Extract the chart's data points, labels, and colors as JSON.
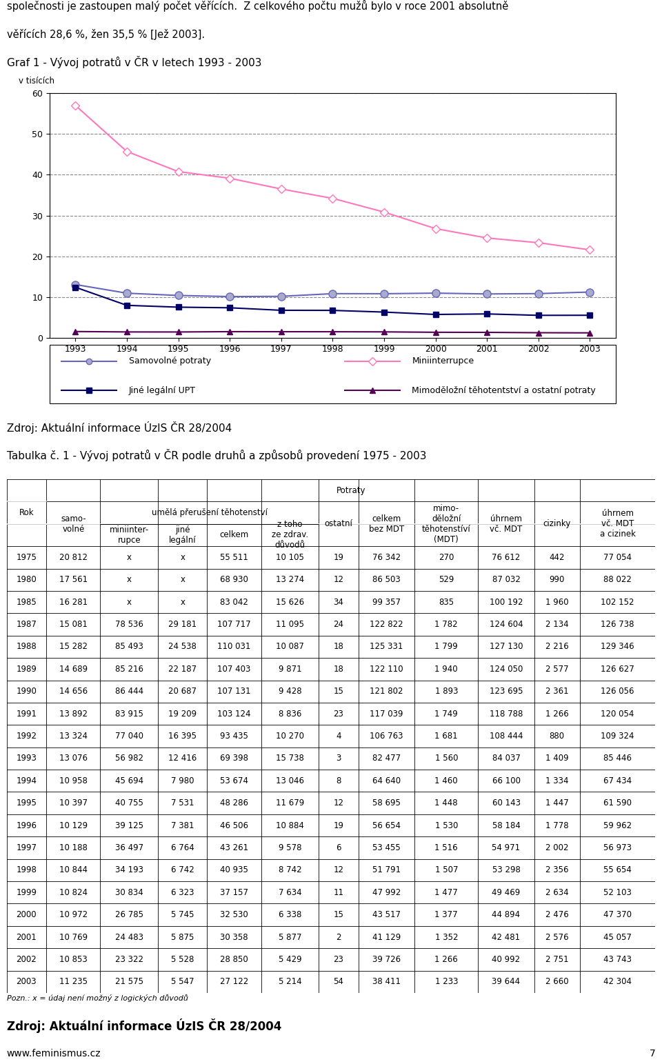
{
  "intro_text_line1": "společnosti je zastoupen malý počet věřících.  Z celkového počtu mužů bylo v roce 2001 absolutně",
  "intro_text_line2": "věřících 28,6 %, žen 35,5 % [Jež 2003].",
  "chart_title": "Graf 1 - Vývoj potratů v ČR v letech 1993 - 2003",
  "y_label": "v tisících",
  "years": [
    1993,
    1994,
    1995,
    1996,
    1997,
    1998,
    1999,
    2000,
    2001,
    2002,
    2003
  ],
  "samovolne": [
    13.076,
    10.958,
    10.397,
    10.129,
    10.188,
    10.844,
    10.824,
    10.972,
    10.769,
    10.853,
    11.235
  ],
  "miniinterrupce": [
    56.982,
    45.694,
    40.755,
    39.125,
    36.497,
    34.193,
    30.834,
    26.785,
    24.483,
    23.322,
    21.575
  ],
  "jine_legalni": [
    12.416,
    7.98,
    7.531,
    7.381,
    6.764,
    6.742,
    6.323,
    5.745,
    5.875,
    5.528,
    5.547
  ],
  "mimodelo": [
    1.56,
    1.46,
    1.448,
    1.53,
    1.516,
    1.507,
    1.477,
    1.377,
    1.352,
    1.266,
    1.233
  ],
  "source_text": "Zdroj: Aktuální informace ÚzIS ČR 28/2004",
  "table_title": "Tabulka č. 1 - Vývoj potratů v ČR podle druhů a způsobů provedení 1975 - 2003",
  "table_rows": [
    [
      "1975",
      "20 812",
      "x",
      "x",
      "55 511",
      "10 105",
      "19",
      "76 342",
      "270",
      "76 612",
      "442",
      "77 054"
    ],
    [
      "1980",
      "17 561",
      "x",
      "x",
      "68 930",
      "13 274",
      "12",
      "86 503",
      "529",
      "87 032",
      "990",
      "88 022"
    ],
    [
      "1985",
      "16 281",
      "x",
      "x",
      "83 042",
      "15 626",
      "34",
      "99 357",
      "835",
      "100 192",
      "1 960",
      "102 152"
    ],
    [
      "1987",
      "15 081",
      "78 536",
      "29 181",
      "107 717",
      "11 095",
      "24",
      "122 822",
      "1 782",
      "124 604",
      "2 134",
      "126 738"
    ],
    [
      "1988",
      "15 282",
      "85 493",
      "24 538",
      "110 031",
      "10 087",
      "18",
      "125 331",
      "1 799",
      "127 130",
      "2 216",
      "129 346"
    ],
    [
      "1989",
      "14 689",
      "85 216",
      "22 187",
      "107 403",
      "9 871",
      "18",
      "122 110",
      "1 940",
      "124 050",
      "2 577",
      "126 627"
    ],
    [
      "1990",
      "14 656",
      "86 444",
      "20 687",
      "107 131",
      "9 428",
      "15",
      "121 802",
      "1 893",
      "123 695",
      "2 361",
      "126 056"
    ],
    [
      "1991",
      "13 892",
      "83 915",
      "19 209",
      "103 124",
      "8 836",
      "23",
      "117 039",
      "1 749",
      "118 788",
      "1 266",
      "120 054"
    ],
    [
      "1992",
      "13 324",
      "77 040",
      "16 395",
      "93 435",
      "10 270",
      "4",
      "106 763",
      "1 681",
      "108 444",
      "880",
      "109 324"
    ],
    [
      "1993",
      "13 076",
      "56 982",
      "12 416",
      "69 398",
      "15 738",
      "3",
      "82 477",
      "1 560",
      "84 037",
      "1 409",
      "85 446"
    ],
    [
      "1994",
      "10 958",
      "45 694",
      "7 980",
      "53 674",
      "13 046",
      "8",
      "64 640",
      "1 460",
      "66 100",
      "1 334",
      "67 434"
    ],
    [
      "1995",
      "10 397",
      "40 755",
      "7 531",
      "48 286",
      "11 679",
      "12",
      "58 695",
      "1 448",
      "60 143",
      "1 447",
      "61 590"
    ],
    [
      "1996",
      "10 129",
      "39 125",
      "7 381",
      "46 506",
      "10 884",
      "19",
      "56 654",
      "1 530",
      "58 184",
      "1 778",
      "59 962"
    ],
    [
      "1997",
      "10 188",
      "36 497",
      "6 764",
      "43 261",
      "9 578",
      "6",
      "53 455",
      "1 516",
      "54 971",
      "2 002",
      "56 973"
    ],
    [
      "1998",
      "10 844",
      "34 193",
      "6 742",
      "40 935",
      "8 742",
      "12",
      "51 791",
      "1 507",
      "53 298",
      "2 356",
      "55 654"
    ],
    [
      "1999",
      "10 824",
      "30 834",
      "6 323",
      "37 157",
      "7 634",
      "11",
      "47 992",
      "1 477",
      "49 469",
      "2 634",
      "52 103"
    ],
    [
      "2000",
      "10 972",
      "26 785",
      "5 745",
      "32 530",
      "6 338",
      "15",
      "43 517",
      "1 377",
      "44 894",
      "2 476",
      "47 370"
    ],
    [
      "2001",
      "10 769",
      "24 483",
      "5 875",
      "30 358",
      "5 877",
      "2",
      "41 129",
      "1 352",
      "42 481",
      "2 576",
      "45 057"
    ],
    [
      "2002",
      "10 853",
      "23 322",
      "5 528",
      "28 850",
      "5 429",
      "23",
      "39 726",
      "1 266",
      "40 992",
      "2 751",
      "43 743"
    ],
    [
      "2003",
      "11 235",
      "21 575",
      "5 547",
      "27 122",
      "5 214",
      "54",
      "38 411",
      "1 233",
      "39 644",
      "2 660",
      "42 304"
    ]
  ],
  "footer_note": "Pozn.: x = údaj není možný z logických důvodů",
  "footer_source": "Zdroj: Aktuální informace ÚzIS ČR 28/2004",
  "footer_web": "www.feminismus.cz",
  "footer_page": "7"
}
